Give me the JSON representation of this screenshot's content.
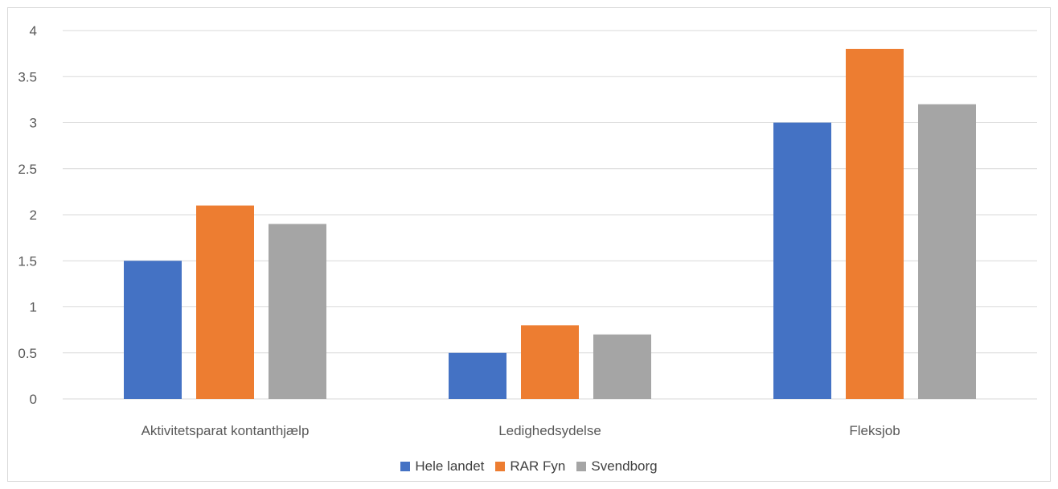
{
  "chart_data": {
    "type": "bar",
    "title": "",
    "xlabel": "",
    "ylabel": "",
    "categories": [
      "Aktivitetsparat kontanthjælp",
      "Ledighedsydelse",
      "Fleksjob"
    ],
    "series": [
      {
        "name": "Hele landet",
        "color": "#4472c4",
        "values": [
          1.5,
          0.5,
          3.0
        ]
      },
      {
        "name": "RAR Fyn",
        "color": "#ed7d31",
        "values": [
          2.1,
          0.8,
          3.8
        ]
      },
      {
        "name": "Svendborg",
        "color": "#a5a5a5",
        "values": [
          1.9,
          0.7,
          3.2
        ]
      }
    ],
    "ylim": [
      0,
      4
    ],
    "yticks": [
      "0",
      "0.5",
      "1",
      "1.5",
      "2",
      "2.5",
      "3",
      "3.5",
      "4"
    ],
    "grid": true,
    "legend_position": "bottom"
  }
}
